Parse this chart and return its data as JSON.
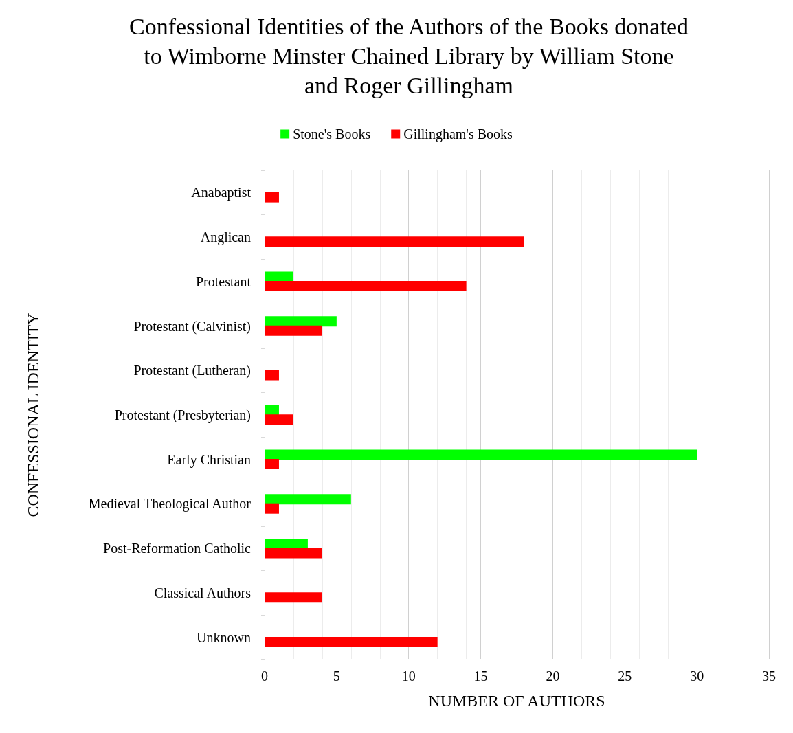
{
  "chart_data": {
    "type": "bar",
    "orientation": "horizontal",
    "title": "Confessional Identities of the Authors of the Books donated\nto Wimborne Minster Chained Library by William Stone\nand Roger Gillingham",
    "xlabel": "NUMBER OF AUTHORS",
    "ylabel": "CONFESSIONAL IDENTITY",
    "categories": [
      "Anabaptist",
      "Anglican",
      "Protestant",
      "Protestant (Calvinist)",
      "Protestant (Lutheran)",
      "Protestant (Presbyterian)",
      "Early Christian",
      "Medieval Theological Author",
      "Post-Reformation Catholic",
      "Classical Authors",
      "Unknown"
    ],
    "series": [
      {
        "name": "Stone's Books",
        "color": "#00ff00",
        "values": [
          0,
          0,
          2,
          5,
          0,
          1,
          30,
          6,
          3,
          0,
          0
        ]
      },
      {
        "name": "Gillingham's Books",
        "color": "#ff0000",
        "values": [
          1,
          18,
          14,
          4,
          1,
          2,
          1,
          1,
          4,
          4,
          12
        ]
      }
    ],
    "xlim": [
      0,
      35
    ],
    "xticks": [
      0,
      5,
      10,
      15,
      20,
      25,
      30,
      35
    ],
    "grid": "x",
    "legend": "top"
  }
}
